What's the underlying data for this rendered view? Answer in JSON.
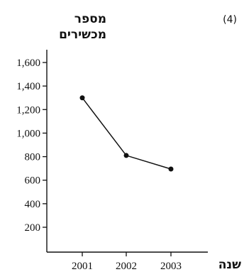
{
  "question_number": "(4)",
  "chart_data": {
    "type": "line",
    "ylabel_line1": "מספר",
    "ylabel_line2": "מכשירים",
    "xlabel": "שנה",
    "categories": [
      "2001",
      "2002",
      "2003"
    ],
    "values": [
      1300,
      810,
      695
    ],
    "ylim": [
      0,
      1600
    ],
    "yticks": [
      200,
      400,
      600,
      800,
      1000,
      1200,
      1400,
      1600
    ],
    "ytick_labels": [
      "200",
      "400",
      "600",
      "800",
      "1,000",
      "1,200",
      "1,400",
      "1,600"
    ],
    "grid": false,
    "markers": true,
    "line_color": "#111111"
  }
}
